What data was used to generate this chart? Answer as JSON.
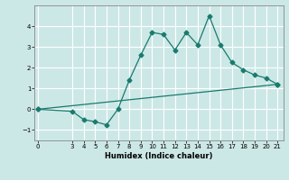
{
  "title": "",
  "xlabel": "Humidex (Indice chaleur)",
  "line1_x": [
    0,
    3,
    4,
    5,
    6,
    7,
    8,
    9,
    10,
    11,
    12,
    13,
    14,
    15,
    16,
    17,
    18,
    19,
    20,
    21
  ],
  "line1_y": [
    0.0,
    -0.1,
    -0.5,
    -0.6,
    -0.75,
    0.0,
    1.4,
    2.6,
    3.7,
    3.6,
    2.85,
    3.7,
    3.1,
    4.5,
    3.1,
    2.25,
    1.9,
    1.65,
    1.5,
    1.2
  ],
  "line2_x": [
    0,
    21
  ],
  "line2_y": [
    0.0,
    1.2
  ],
  "line_color": "#1a7a6e",
  "bg_color": "#cce8e6",
  "grid_color": "#ffffff",
  "ylim": [
    -1.5,
    5.0
  ],
  "xlim": [
    -0.3,
    21.5
  ],
  "yticks": [
    -1,
    0,
    1,
    2,
    3,
    4
  ],
  "xticks": [
    0,
    3,
    4,
    5,
    6,
    7,
    8,
    9,
    10,
    11,
    12,
    13,
    14,
    15,
    16,
    17,
    18,
    19,
    20,
    21
  ],
  "marker": "D",
  "markersize": 2.5,
  "linewidth": 0.9
}
